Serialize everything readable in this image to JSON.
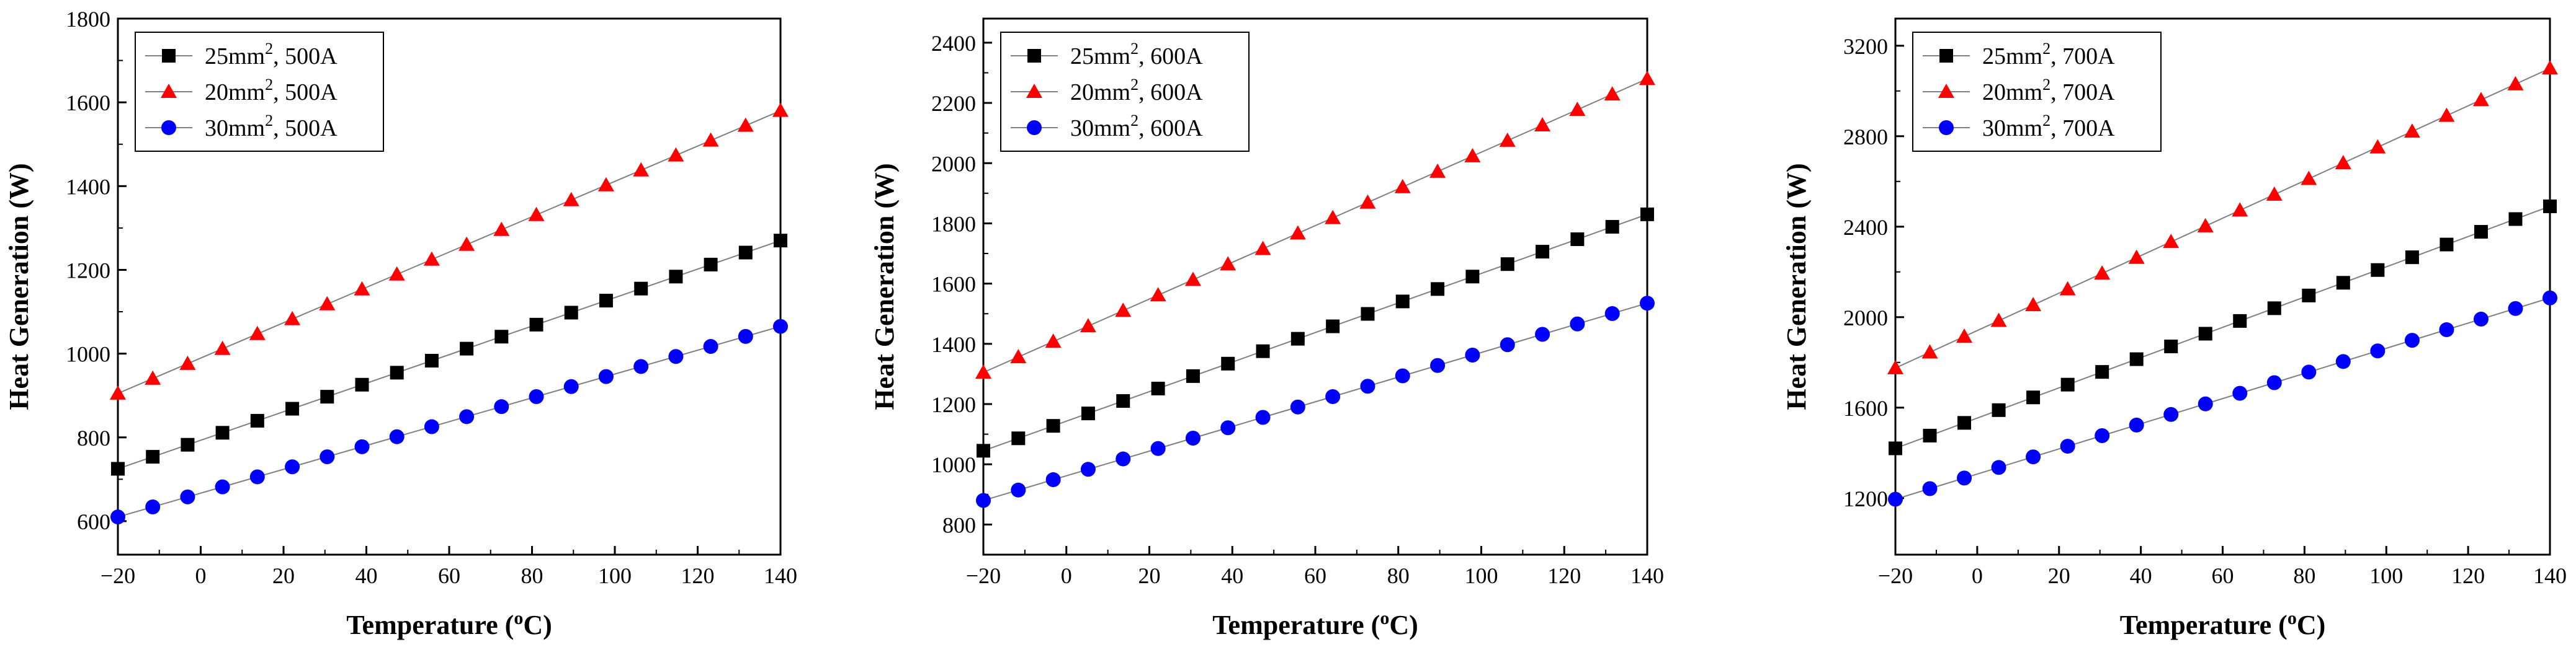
{
  "colors": {
    "black": "#000000",
    "red": "#ff0000",
    "blue": "#0000ff",
    "line": "#7f7f7f"
  },
  "chart_data": [
    {
      "type": "line",
      "title": "",
      "xlabel": "Temperature (",
      "xlabel_sup": "o",
      "xlabel_tail": "C)",
      "ylabel": "Heat Generation (W)",
      "xlim": [
        -20,
        140
      ],
      "ylim": [
        520,
        1800
      ],
      "xticks": [
        "−20",
        "0",
        "20",
        "40",
        "60",
        "80",
        "100",
        "120",
        "140"
      ],
      "xtick_values": [
        -20,
        0,
        20,
        40,
        60,
        80,
        100,
        120,
        140
      ],
      "yticks": [
        "600",
        "800",
        "1000",
        "1200",
        "1400",
        "1600",
        "1800"
      ],
      "ytick_values": [
        600,
        800,
        1000,
        1200,
        1400,
        1600,
        1800
      ],
      "x": [
        -20,
        -11.58,
        -3.16,
        5.26,
        13.68,
        22.11,
        30.53,
        38.95,
        47.37,
        55.79,
        64.21,
        72.63,
        81.05,
        89.47,
        97.89,
        106.32,
        114.74,
        123.16,
        131.58,
        140
      ],
      "legend_position": "top-left",
      "series": [
        {
          "name": "25mm",
          "sup": "2",
          "suffix": ", 500A",
          "marker": "square",
          "color": "#000000",
          "start": 725,
          "end": 1270
        },
        {
          "name": "20mm",
          "sup": "2",
          "suffix": ", 500A",
          "marker": "triangle",
          "color": "#ff0000",
          "start": 905,
          "end": 1580
        },
        {
          "name": "30mm",
          "sup": "2",
          "suffix": ", 500A",
          "marker": "circle",
          "color": "#0000ff",
          "start": 610,
          "end": 1065
        }
      ]
    },
    {
      "type": "line",
      "title": "",
      "xlabel": "Temperature (",
      "xlabel_sup": "o",
      "xlabel_tail": "C)",
      "ylabel": "Heat Generation (W)",
      "xlim": [
        -20,
        140
      ],
      "ylim": [
        700,
        2480
      ],
      "xticks": [
        "−20",
        "0",
        "20",
        "40",
        "60",
        "80",
        "100",
        "120",
        "140"
      ],
      "xtick_values": [
        -20,
        0,
        20,
        40,
        60,
        80,
        100,
        120,
        140
      ],
      "yticks": [
        "800",
        "1000",
        "1200",
        "1400",
        "1600",
        "1800",
        "2000",
        "2200",
        "2400"
      ],
      "ytick_values": [
        800,
        1000,
        1200,
        1400,
        1600,
        1800,
        2000,
        2200,
        2400
      ],
      "x": [
        -20,
        -11.58,
        -3.16,
        5.26,
        13.68,
        22.11,
        30.53,
        38.95,
        47.37,
        55.79,
        64.21,
        72.63,
        81.05,
        89.47,
        97.89,
        106.32,
        114.74,
        123.16,
        131.58,
        140
      ],
      "legend_position": "top-left",
      "series": [
        {
          "name": "25mm",
          "sup": "2",
          "suffix": ", 600A",
          "marker": "square",
          "color": "#000000",
          "start": 1045,
          "end": 1830
        },
        {
          "name": "20mm",
          "sup": "2",
          "suffix": ", 600A",
          "marker": "triangle",
          "color": "#ff0000",
          "start": 1305,
          "end": 2280
        },
        {
          "name": "30mm",
          "sup": "2",
          "suffix": ", 600A",
          "marker": "circle",
          "color": "#0000ff",
          "start": 880,
          "end": 1535
        }
      ]
    },
    {
      "type": "line",
      "title": "",
      "xlabel": "Temperature (",
      "xlabel_sup": "o",
      "xlabel_tail": "C)",
      "ylabel": "Heat Generation (W)",
      "xlim": [
        -20,
        140
      ],
      "ylim": [
        950,
        3320
      ],
      "xticks": [
        "−20",
        "0",
        "20",
        "40",
        "60",
        "80",
        "100",
        "120",
        "140"
      ],
      "xtick_values": [
        -20,
        0,
        20,
        40,
        60,
        80,
        100,
        120,
        140
      ],
      "yticks": [
        "1200",
        "1600",
        "2000",
        "2400",
        "2800",
        "3200"
      ],
      "ytick_values": [
        1200,
        1600,
        2000,
        2400,
        2800,
        3200
      ],
      "x": [
        -20,
        -11.58,
        -3.16,
        5.26,
        13.68,
        22.11,
        30.53,
        38.95,
        47.37,
        55.79,
        64.21,
        72.63,
        81.05,
        89.47,
        97.89,
        106.32,
        114.74,
        123.16,
        131.58,
        140
      ],
      "legend_position": "top-left",
      "series": [
        {
          "name": "25mm",
          "sup": "2",
          "suffix": ", 700A",
          "marker": "square",
          "color": "#000000",
          "start": 1420,
          "end": 2490
        },
        {
          "name": "20mm",
          "sup": "2",
          "suffix": ", 700A",
          "marker": "triangle",
          "color": "#ff0000",
          "start": 1775,
          "end": 3100
        },
        {
          "name": "30mm",
          "sup": "2",
          "suffix": ", 700A",
          "marker": "circle",
          "color": "#0000ff",
          "start": 1195,
          "end": 2085
        }
      ]
    }
  ]
}
